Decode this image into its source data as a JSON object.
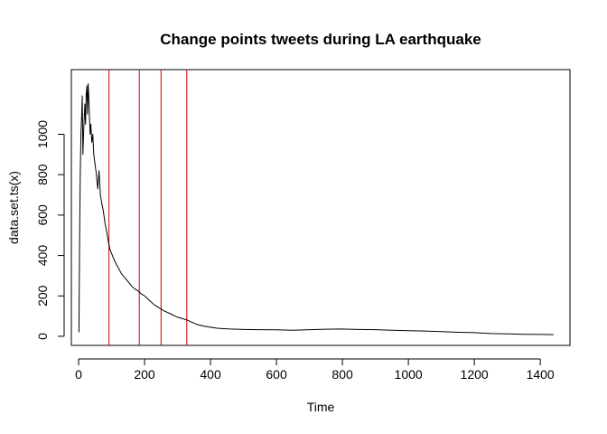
{
  "chart_data": {
    "type": "line",
    "title": "Change points tweets during LA earthquake",
    "xlabel": "Time",
    "ylabel": "data.set.ts(x)",
    "xlim": [
      -22,
      1490
    ],
    "ylim": [
      -45,
      1320
    ],
    "x_ticks": [
      0,
      200,
      400,
      600,
      800,
      1000,
      1200,
      1400
    ],
    "y_ticks": [
      0,
      200,
      400,
      600,
      800,
      1000
    ],
    "change_points": [
      92,
      184,
      250,
      328
    ],
    "change_point_color": "#cc0000",
    "series_color": "#000000",
    "grid": false,
    "series": [
      {
        "x": [
          1,
          3,
          5,
          7,
          9,
          11,
          13,
          15,
          17,
          19,
          21,
          23,
          25,
          27,
          29,
          31,
          33,
          35,
          37,
          40,
          43,
          46,
          50,
          54,
          58,
          62,
          66,
          70,
          75,
          80,
          85,
          90,
          95,
          100,
          110,
          120,
          130,
          140,
          150,
          160,
          170,
          180,
          190,
          200,
          210,
          220,
          230,
          240,
          250,
          260,
          270,
          280,
          290,
          300,
          310,
          320,
          330,
          340,
          350,
          360,
          380,
          400,
          420,
          440,
          460,
          480,
          500,
          550,
          600,
          650,
          700,
          750,
          800,
          850,
          900,
          950,
          1000,
          1050,
          1100,
          1150,
          1200,
          1250,
          1300,
          1350,
          1400,
          1440
        ],
        "y": [
          20,
          480,
          800,
          1000,
          1080,
          1190,
          900,
          1000,
          1080,
          1150,
          1050,
          1200,
          1240,
          1100,
          1250,
          1180,
          1080,
          1000,
          1050,
          960,
          1000,
          900,
          850,
          800,
          730,
          820,
          700,
          660,
          620,
          560,
          520,
          470,
          430,
          410,
          370,
          340,
          310,
          290,
          270,
          250,
          235,
          225,
          210,
          200,
          185,
          170,
          155,
          145,
          135,
          125,
          118,
          110,
          102,
          95,
          90,
          85,
          80,
          72,
          65,
          58,
          50,
          45,
          40,
          38,
          36,
          35,
          34,
          33,
          32,
          30,
          33,
          35,
          36,
          34,
          33,
          30,
          28,
          26,
          23,
          20,
          18,
          14,
          12,
          10,
          9,
          8
        ]
      }
    ]
  }
}
